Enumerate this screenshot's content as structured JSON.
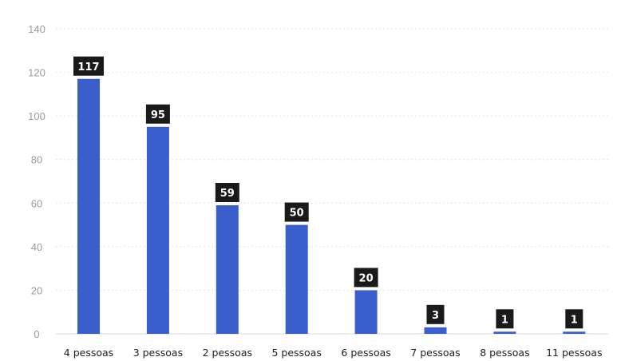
{
  "chart_data": {
    "type": "bar",
    "categories": [
      "4 pessoas",
      "3 pessoas",
      "2 pessoas",
      "5 pessoas",
      "6 pessoas",
      "7 pessoas",
      "8 pessoas",
      "11 pessoas"
    ],
    "values": [
      117,
      95,
      59,
      50,
      20,
      3,
      1,
      1
    ],
    "data_labels": [
      "117",
      "95",
      "59",
      "50",
      "20",
      "3",
      "1",
      "1"
    ],
    "yticks": [
      0,
      20,
      40,
      60,
      80,
      100,
      120,
      140
    ],
    "ylim": [
      0,
      140
    ],
    "grid": true,
    "bar_color": "#3a5fcd",
    "label_box_color": "#1a1a1a",
    "title": "",
    "xlabel": "",
    "ylabel": ""
  }
}
